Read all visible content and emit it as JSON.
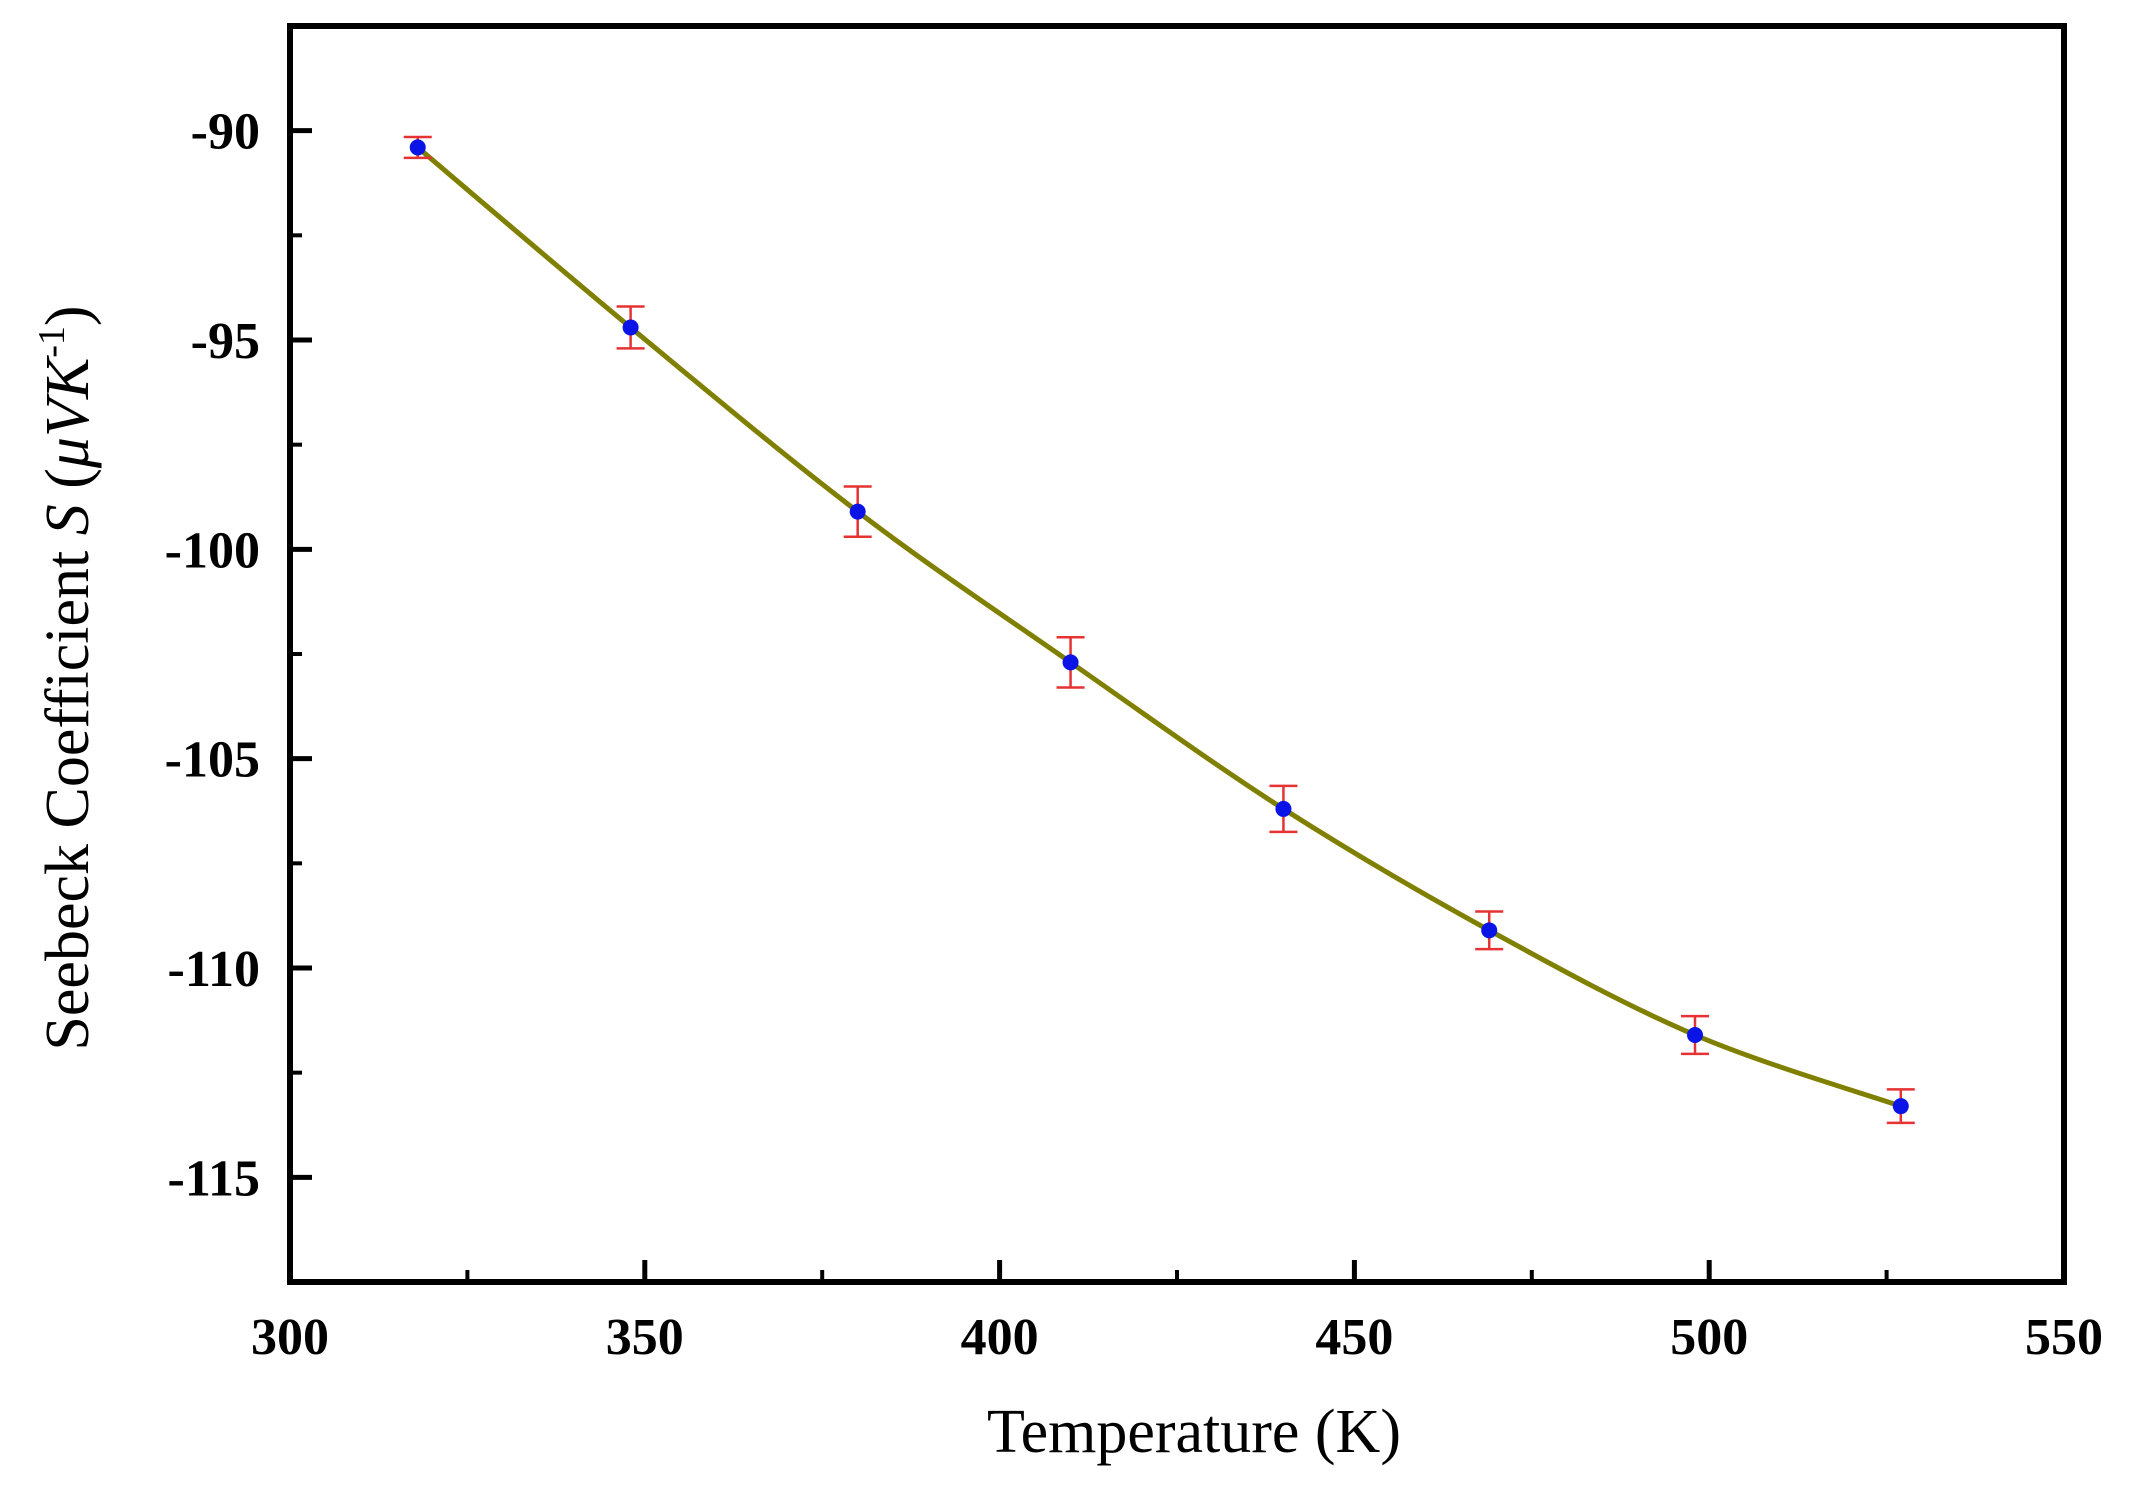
{
  "chart_data": {
    "type": "line",
    "title": "",
    "xlabel": "Temperature (K)",
    "ylabel": {
      "main": "Seebeck Coefficient ",
      "symbol": "S",
      "unit_open": " (",
      "unit_mu": "μ",
      "unit_v": "V",
      "unit_k": "K",
      "unit_exp": "-1",
      "unit_close": ")"
    },
    "xlim": [
      300,
      550
    ],
    "ylim": [
      -117.5,
      -87.5
    ],
    "x_ticks": [
      300,
      350,
      400,
      450,
      500,
      550
    ],
    "x_tick_labels": [
      "300",
      "350",
      "400",
      "450",
      "500",
      "550"
    ],
    "y_ticks": [
      -90,
      -95,
      -100,
      -105,
      -110,
      -115
    ],
    "y_tick_labels": [
      "-90",
      "-95",
      "-100",
      "-105",
      "-110",
      "-115"
    ],
    "x_minor_step": 25,
    "y_minor_step": 2.5,
    "grid": false,
    "legend": "none",
    "series": [
      {
        "x": [
          318,
          348,
          380,
          410,
          440,
          469,
          498,
          527
        ],
        "y": [
          -90.4,
          -94.7,
          -99.1,
          -102.7,
          -106.2,
          -109.1,
          -111.6,
          -113.3
        ],
        "err": [
          0.25,
          0.5,
          0.6,
          0.6,
          0.55,
          0.45,
          0.45,
          0.4
        ],
        "marker_color": "#0a14e6",
        "line_color": "#808000",
        "error_color": "#e63232"
      }
    ]
  }
}
